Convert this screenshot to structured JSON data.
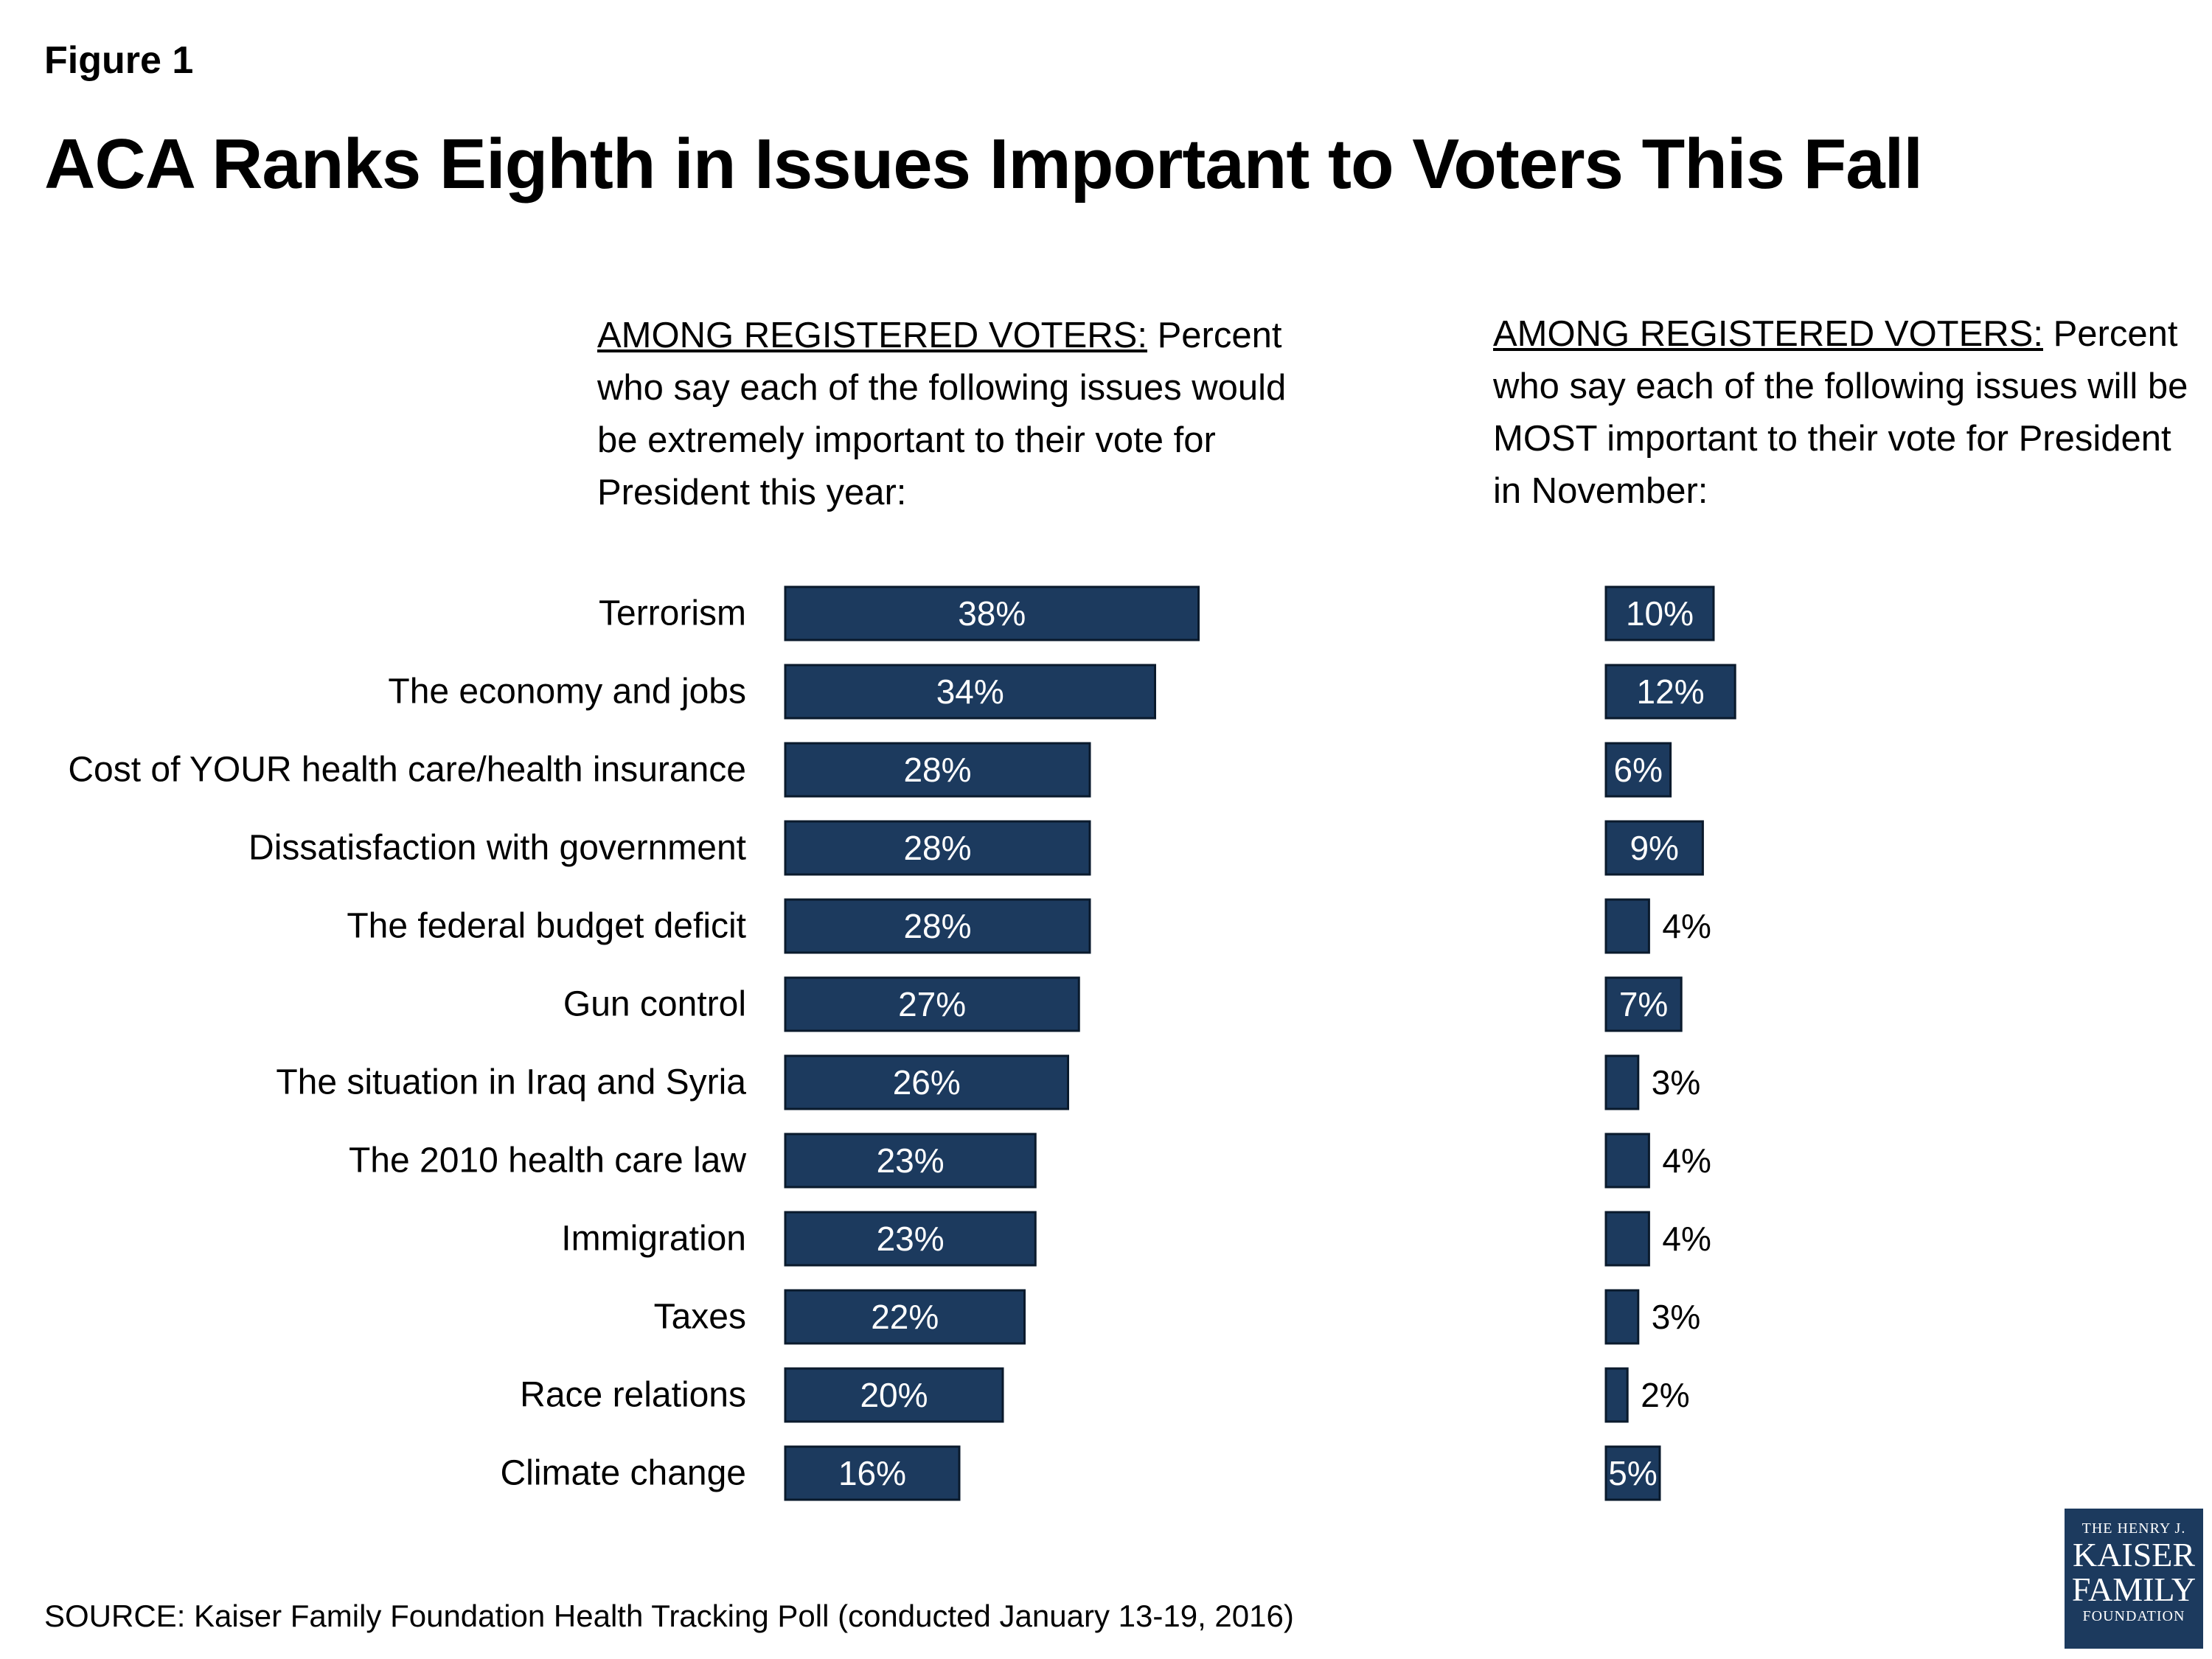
{
  "figure_label": "Figure 1",
  "title": "ACA Ranks Eighth in Issues Important to Voters This Fall",
  "left_panel": {
    "heading_underlined": "AMONG REGISTERED VOTERS:",
    "heading_rest": " Percent who say each of the following issues would be extremely important to their vote for President this year:"
  },
  "right_panel": {
    "heading_underlined": "AMONG REGISTERED VOTERS:",
    "heading_rest": " Percent who say each of the following issues will be MOST important to their vote for President in November:"
  },
  "source": "SOURCE: Kaiser Family Foundation Health Tracking Poll (conducted January 13-19, 2016)",
  "logo": {
    "line1": "THE HENRY J.",
    "line2": "KAISER",
    "line3": "FAMILY",
    "line4": "FOUNDATION"
  },
  "colors": {
    "bar": "#1c3a5e",
    "bar_border": "#0a1a2c",
    "label_inside": "#ffffff",
    "label_outside": "#000000"
  },
  "chart_data": [
    {
      "type": "bar",
      "orientation": "horizontal",
      "panel": "extremely important",
      "categories": [
        "Terrorism",
        "The economy and jobs",
        "Cost of YOUR health care/health insurance",
        "Dissatisfaction with government",
        "The federal budget deficit",
        "Gun control",
        "The situation in Iraq and Syria",
        "The 2010 health care law",
        "Immigration",
        "Taxes",
        "Race relations",
        "Climate change"
      ],
      "values": [
        38,
        34,
        28,
        28,
        28,
        27,
        26,
        23,
        23,
        22,
        20,
        16
      ],
      "labels": [
        "38%",
        "34%",
        "28%",
        "28%",
        "28%",
        "27%",
        "26%",
        "23%",
        "23%",
        "22%",
        "20%",
        "16%"
      ]
    },
    {
      "type": "bar",
      "orientation": "horizontal",
      "panel": "most important",
      "categories": [
        "Terrorism",
        "The economy and jobs",
        "Cost of YOUR health care/health insurance",
        "Dissatisfaction with government",
        "The federal budget deficit",
        "Gun control",
        "The situation in Iraq and Syria",
        "The 2010 health care law",
        "Immigration",
        "Taxes",
        "Race relations",
        "Climate change"
      ],
      "values": [
        10,
        12,
        6,
        9,
        4,
        7,
        3,
        4,
        4,
        3,
        2,
        5
      ],
      "labels": [
        "10%",
        "12%",
        "6%",
        "9%",
        "4%",
        "7%",
        "3%",
        "4%",
        "4%",
        "3%",
        "2%",
        "5%"
      ]
    }
  ]
}
